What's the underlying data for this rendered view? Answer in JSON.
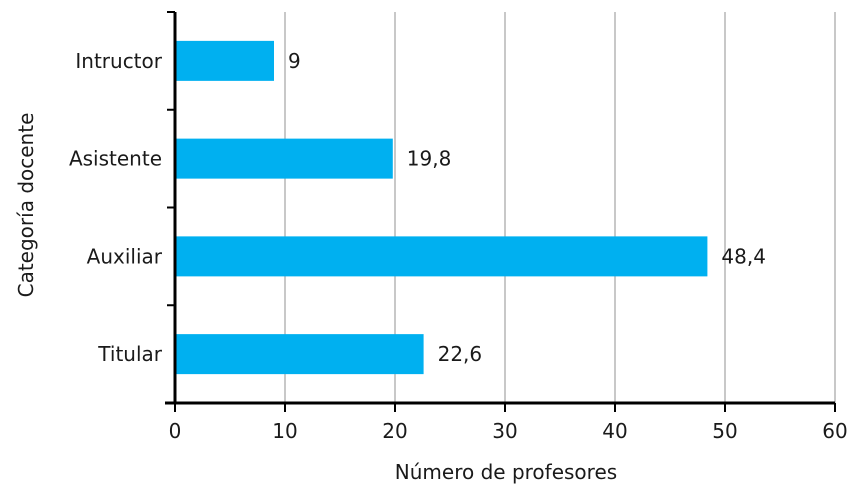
{
  "chart_data": {
    "type": "bar",
    "orientation": "horizontal",
    "categories": [
      "Intructor",
      "Asistente",
      "Auxiliar",
      "Titular"
    ],
    "values": [
      9,
      19.8,
      48.4,
      22.6
    ],
    "value_labels": [
      "9",
      "19,8",
      "48,4",
      "22,6"
    ],
    "xlabel": "Número de profesores",
    "ylabel": "Categoría docente",
    "xlim": [
      0,
      60
    ],
    "xticks": [
      0,
      10,
      20,
      30,
      40,
      50,
      60
    ],
    "grid": "vertical",
    "legend": "none",
    "colors": {
      "bar": "#00b0f0",
      "grid": "#c8c8c8",
      "axis": "#000000"
    }
  }
}
